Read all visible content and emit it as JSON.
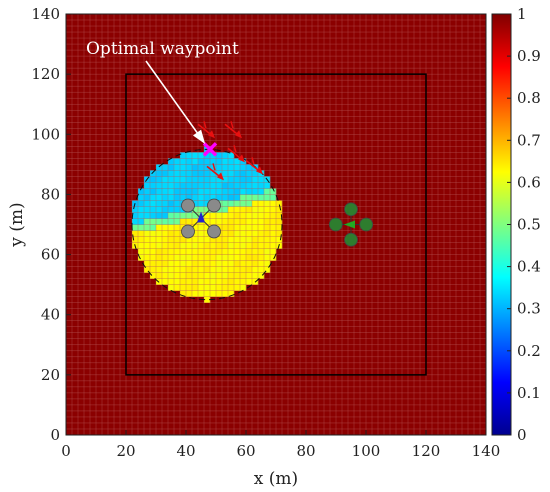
{
  "chart_data": {
    "type": "heatmap",
    "xlabel": "x (m)",
    "ylabel": "y (m)",
    "xlim": [
      0,
      140
    ],
    "ylim": [
      0,
      140
    ],
    "xticks": [
      "0",
      "20",
      "40",
      "60",
      "80",
      "100",
      "120",
      "140"
    ],
    "yticks": [
      "0",
      "20",
      "40",
      "60",
      "80",
      "100",
      "120",
      "140"
    ],
    "grid_cell_size": 2,
    "background_value": 1,
    "explored_region": {
      "center": [
        47,
        70
      ],
      "radius": 25,
      "lower_value": 0.63,
      "upper_value": 0.33
    },
    "boundary_rect": {
      "x": [
        20,
        120
      ],
      "y": [
        20,
        120
      ]
    },
    "colorbar": {
      "lim": [
        0,
        1
      ],
      "ticks": [
        "0",
        "0.1",
        "0.2",
        "0.3",
        "0.4",
        "0.5",
        "0.6",
        "0.7",
        "0.8",
        "0.9",
        "1"
      ]
    },
    "annotation": {
      "text": "Optimal waypoint",
      "point": [
        48,
        95
      ]
    },
    "waypoint": {
      "x": 48,
      "y": 95,
      "color": "#ff00ff"
    },
    "candidate_points": [
      [
        47,
        101
      ],
      [
        56,
        101
      ],
      [
        57,
        93
      ],
      [
        63,
        89
      ],
      [
        50,
        87
      ]
    ],
    "drones": [
      {
        "center": [
          45,
          72
        ],
        "color": "#8a8a8a",
        "arrow_color": "#2222cc",
        "facing": "up"
      },
      {
        "center": [
          95,
          70
        ],
        "color": "#2e7d2e",
        "arrow_color": "#22aa22",
        "facing": "left"
      }
    ]
  },
  "colors": {
    "background_cells": "#8b0000",
    "grid_lines": "#b85a5a",
    "candidate_arrows": "#e81010",
    "boundary": "#000000"
  }
}
